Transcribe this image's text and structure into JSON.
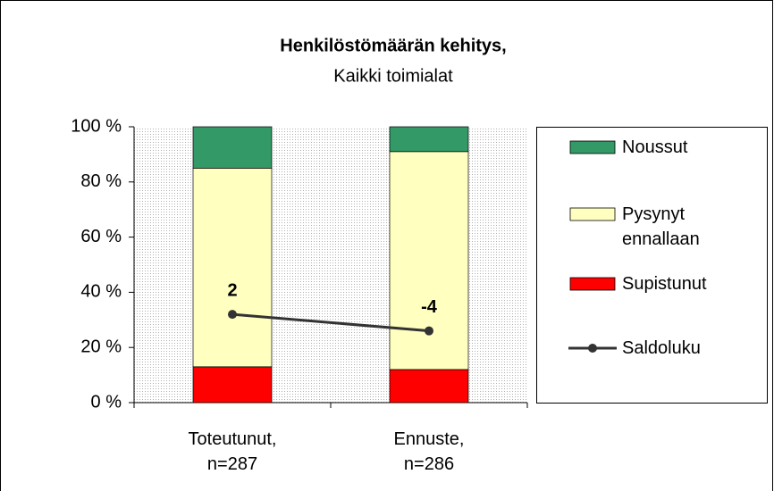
{
  "chart_data": {
    "type": "bar",
    "stacked": true,
    "title": "Henkilöstömäärän kehitys,",
    "subtitle": "Kaikki toimialat",
    "categories": [
      "Toteutunut, n=287",
      "Ennuste, n=286"
    ],
    "series": [
      {
        "name": "Noussut",
        "color": "#339966",
        "values": [
          15,
          9
        ]
      },
      {
        "name": "Pysynyt ennallaan",
        "color": "#ffffc0",
        "values": [
          72,
          79
        ]
      },
      {
        "name": "Supistunut",
        "color": "#ff0000",
        "values": [
          13,
          12
        ]
      },
      {
        "name": "Saldoluku",
        "color": "#333333",
        "type": "line",
        "axis": "y2",
        "values": [
          2,
          -4
        ]
      }
    ],
    "ylim": [
      0,
      100
    ],
    "yticks": [
      {
        "value": 0,
        "label": "0 %"
      },
      {
        "value": 20,
        "label": "20 %"
      },
      {
        "value": 40,
        "label": "40 %"
      },
      {
        "value": 60,
        "label": "60 %"
      },
      {
        "value": 80,
        "label": "80 %"
      },
      {
        "value": 100,
        "label": "100 %"
      }
    ],
    "y2lim": [
      -30,
      70
    ],
    "legend": "right"
  }
}
